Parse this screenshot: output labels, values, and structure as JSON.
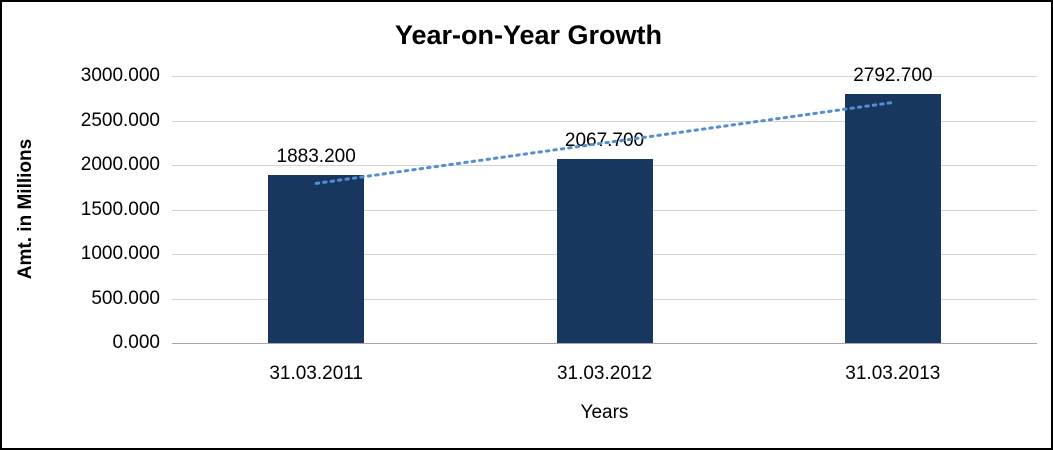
{
  "chart_data": {
    "type": "bar",
    "title": "Year-on-Year Growth",
    "xlabel": "Years",
    "ylabel": "Amt. in Millions",
    "categories": [
      "31.03.2011",
      "31.03.2012",
      "31.03.2013"
    ],
    "values": [
      1883.2,
      2067.7,
      2792.7
    ],
    "value_labels": [
      "1883.200",
      "2067.700",
      "2792.700"
    ],
    "ylim": [
      0,
      3000
    ],
    "ytick_step": 500,
    "ytick_labels": [
      "0.000",
      "500.000",
      "1000.000",
      "1500.000",
      "2000.000",
      "2500.000",
      "3000.000"
    ],
    "grid": true,
    "legend": "none",
    "bar_color": "#17375E",
    "trendline": {
      "type": "linear",
      "style": "dotted",
      "color": "#558ED5"
    }
  }
}
